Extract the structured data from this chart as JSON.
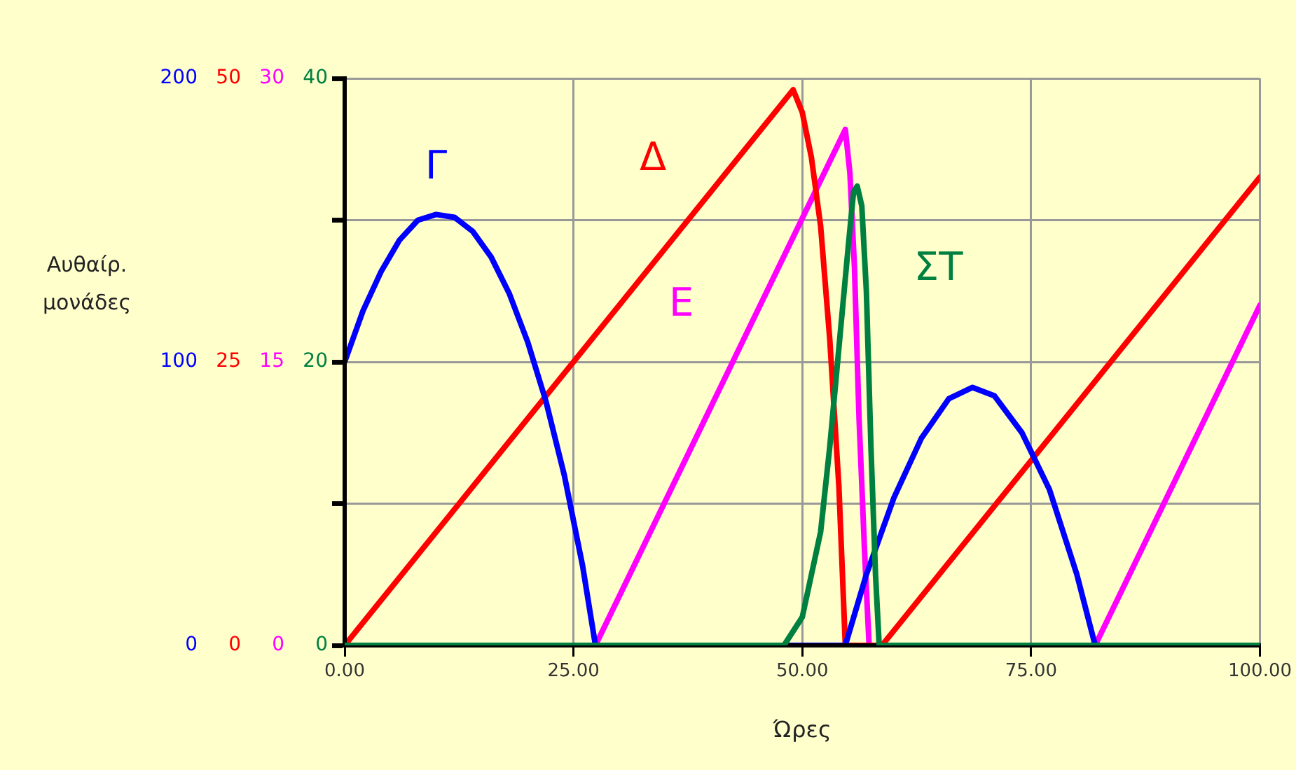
{
  "chart_data": [
    {
      "type": "line",
      "xlabel": "Ώρες",
      "ylabel": "Αυθαίρ. μονάδες",
      "grid": true,
      "legend": false,
      "marker": "none",
      "line_style": "solid",
      "xlim": [
        0,
        100
      ],
      "xticks": [
        {
          "value": 0,
          "label": "0.00"
        },
        {
          "value": 25,
          "label": "25.00"
        },
        {
          "value": 50,
          "label": "50.00"
        },
        {
          "value": 75,
          "label": "75.00"
        },
        {
          "value": 100,
          "label": "100.00"
        }
      ],
      "ylim": [
        0,
        200
      ],
      "yticks": [
        0,
        {
          "value": 50,
          "label": null
        },
        100,
        {
          "value": 150,
          "label": null
        },
        200
      ],
      "y2lim": [
        0,
        50
      ],
      "y2ticks": [
        0,
        {
          "value": 12.5,
          "label": null
        },
        25,
        {
          "value": 37.5,
          "label": null
        },
        50
      ],
      "y3lim": [
        0,
        30
      ],
      "y3ticks": [
        0,
        {
          "value": 7.5,
          "label": null
        },
        15,
        {
          "value": 22.5,
          "label": null
        },
        30
      ],
      "series": [
        {
          "name": "Γ",
          "color": "#0000ff",
          "x": [
            0,
            2,
            4,
            6,
            8,
            10,
            12,
            14,
            16,
            18,
            20,
            22,
            24,
            26,
            27.4,
            54.7,
            57,
            60,
            63,
            66,
            68.6,
            71,
            74,
            77,
            80,
            82,
            100
          ],
          "values": [
            100,
            118,
            132,
            143,
            150,
            152,
            151,
            146,
            137,
            124,
            107,
            86,
            60,
            28,
            0,
            0,
            25,
            52,
            73,
            87,
            91,
            88,
            75,
            55,
            25,
            0,
            0
          ]
        },
        {
          "name": "Δ",
          "color": "#ff0000",
          "axis": "y2",
          "x": [
            0,
            49,
            50,
            51,
            52,
            53,
            54,
            54.7,
            58.7,
            100
          ],
          "values": [
            0,
            49,
            47,
            43,
            37,
            27,
            14,
            0,
            0,
            41.3
          ]
        },
        {
          "name": "Ε",
          "color": "#ff00ff",
          "axis": "y3",
          "x": [
            0,
            27.4,
            54.7,
            55.2,
            55.7,
            56.2,
            56.8,
            57.3,
            82,
            100
          ],
          "values": [
            0,
            0,
            27.3,
            25,
            20,
            12,
            5,
            0,
            0,
            18
          ]
        }
      ]
    },
    {
      "type": "line",
      "legend": false,
      "marker": "none",
      "line_style": "solid",
      "tick_labels": "y",
      "xlim": [
        0,
        100
      ],
      "xticks": [
        0,
        25,
        50,
        75,
        100
      ],
      "ylim": [
        0,
        40
      ],
      "yticks": [
        0,
        {
          "value": 10,
          "label": null
        },
        20,
        {
          "value": 30,
          "label": null
        },
        40
      ],
      "series": [
        {
          "name": "ΣΤ",
          "color": "#008040",
          "x": [
            0,
            48,
            50,
            52,
            53,
            54,
            55,
            55.6,
            56,
            56.5,
            57,
            57.5,
            58,
            58.4,
            100
          ],
          "values": [
            0,
            0,
            2,
            8,
            14,
            21,
            28,
            32,
            32.4,
            31,
            25,
            14,
            5,
            0,
            0
          ]
        }
      ]
    }
  ]
}
